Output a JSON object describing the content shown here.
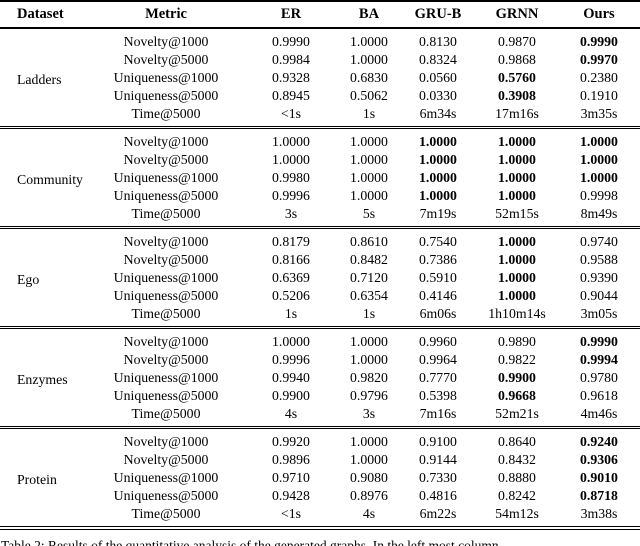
{
  "table": {
    "columns": [
      "Dataset",
      "Metric",
      "ER",
      "BA",
      "GRU-B",
      "GRNN",
      "Ours"
    ],
    "groups": [
      {
        "dataset": "Ladders",
        "rows": [
          {
            "metric": "Novelty@1000",
            "values": [
              "0.9990",
              "1.0000",
              "0.8130",
              "0.9870",
              "0.9990"
            ],
            "bold": [
              false,
              false,
              false,
              false,
              true
            ]
          },
          {
            "metric": "Novelty@5000",
            "values": [
              "0.9984",
              "1.0000",
              "0.8324",
              "0.9868",
              "0.9970"
            ],
            "bold": [
              false,
              false,
              false,
              false,
              true
            ]
          },
          {
            "metric": "Uniqueness@1000",
            "values": [
              "0.9328",
              "0.6830",
              "0.0560",
              "0.5760",
              "0.2380"
            ],
            "bold": [
              false,
              false,
              false,
              true,
              false
            ]
          },
          {
            "metric": "Uniqueness@5000",
            "values": [
              "0.8945",
              "0.5062",
              "0.0330",
              "0.3908",
              "0.1910"
            ],
            "bold": [
              false,
              false,
              false,
              true,
              false
            ]
          },
          {
            "metric": "Time@5000",
            "values": [
              "<1s",
              "1s",
              "6m34s",
              "17m16s",
              "3m35s"
            ],
            "bold": [
              false,
              false,
              false,
              false,
              false
            ]
          }
        ]
      },
      {
        "dataset": "Community",
        "rows": [
          {
            "metric": "Novelty@1000",
            "values": [
              "1.0000",
              "1.0000",
              "1.0000",
              "1.0000",
              "1.0000"
            ],
            "bold": [
              false,
              false,
              true,
              true,
              true
            ]
          },
          {
            "metric": "Novelty@5000",
            "values": [
              "1.0000",
              "1.0000",
              "1.0000",
              "1.0000",
              "1.0000"
            ],
            "bold": [
              false,
              false,
              true,
              true,
              true
            ]
          },
          {
            "metric": "Uniqueness@1000",
            "values": [
              "0.9980",
              "1.0000",
              "1.0000",
              "1.0000",
              "1.0000"
            ],
            "bold": [
              false,
              false,
              true,
              true,
              true
            ]
          },
          {
            "metric": "Uniqueness@5000",
            "values": [
              "0.9996",
              "1.0000",
              "1.0000",
              "1.0000",
              "0.9998"
            ],
            "bold": [
              false,
              false,
              true,
              true,
              false
            ]
          },
          {
            "metric": "Time@5000",
            "values": [
              "3s",
              "5s",
              "7m19s",
              "52m15s",
              "8m49s"
            ],
            "bold": [
              false,
              false,
              false,
              false,
              false
            ]
          }
        ]
      },
      {
        "dataset": "Ego",
        "rows": [
          {
            "metric": "Novelty@1000",
            "values": [
              "0.8179",
              "0.8610",
              "0.7540",
              "1.0000",
              "0.9740"
            ],
            "bold": [
              false,
              false,
              false,
              true,
              false
            ]
          },
          {
            "metric": "Novelty@5000",
            "values": [
              "0.8166",
              "0.8482",
              "0.7386",
              "1.0000",
              "0.9588"
            ],
            "bold": [
              false,
              false,
              false,
              true,
              false
            ]
          },
          {
            "metric": "Uniqueness@1000",
            "values": [
              "0.6369",
              "0.7120",
              "0.5910",
              "1.0000",
              "0.9390"
            ],
            "bold": [
              false,
              false,
              false,
              true,
              false
            ]
          },
          {
            "metric": "Uniqueness@5000",
            "values": [
              "0.5206",
              "0.6354",
              "0.4146",
              "1.0000",
              "0.9044"
            ],
            "bold": [
              false,
              false,
              false,
              true,
              false
            ]
          },
          {
            "metric": "Time@5000",
            "values": [
              "1s",
              "1s",
              "6m06s",
              "1h10m14s",
              "3m05s"
            ],
            "bold": [
              false,
              false,
              false,
              false,
              false
            ]
          }
        ]
      },
      {
        "dataset": "Enzymes",
        "rows": [
          {
            "metric": "Novelty@1000",
            "values": [
              "1.0000",
              "1.0000",
              "0.9960",
              "0.9890",
              "0.9990"
            ],
            "bold": [
              false,
              false,
              false,
              false,
              true
            ]
          },
          {
            "metric": "Novelty@5000",
            "values": [
              "0.9996",
              "1.0000",
              "0.9964",
              "0.9822",
              "0.9994"
            ],
            "bold": [
              false,
              false,
              false,
              false,
              true
            ]
          },
          {
            "metric": "Uniqueness@1000",
            "values": [
              "0.9940",
              "0.9820",
              "0.7770",
              "0.9900",
              "0.9780"
            ],
            "bold": [
              false,
              false,
              false,
              true,
              false
            ]
          },
          {
            "metric": "Uniqueness@5000",
            "values": [
              "0.9900",
              "0.9796",
              "0.5398",
              "0.9668",
              "0.9618"
            ],
            "bold": [
              false,
              false,
              false,
              true,
              false
            ]
          },
          {
            "metric": "Time@5000",
            "values": [
              "4s",
              "3s",
              "7m16s",
              "52m21s",
              "4m46s"
            ],
            "bold": [
              false,
              false,
              false,
              false,
              false
            ]
          }
        ]
      },
      {
        "dataset": "Protein",
        "rows": [
          {
            "metric": "Novelty@1000",
            "values": [
              "0.9920",
              "1.0000",
              "0.9100",
              "0.8640",
              "0.9240"
            ],
            "bold": [
              false,
              false,
              false,
              false,
              true
            ]
          },
          {
            "metric": "Novelty@5000",
            "values": [
              "0.9896",
              "1.0000",
              "0.9144",
              "0.8432",
              "0.9306"
            ],
            "bold": [
              false,
              false,
              false,
              false,
              true
            ]
          },
          {
            "metric": "Uniqueness@1000",
            "values": [
              "0.9710",
              "0.9080",
              "0.7330",
              "0.8880",
              "0.9010"
            ],
            "bold": [
              false,
              false,
              false,
              false,
              true
            ]
          },
          {
            "metric": "Uniqueness@5000",
            "values": [
              "0.9428",
              "0.8976",
              "0.4816",
              "0.8242",
              "0.8718"
            ],
            "bold": [
              false,
              false,
              false,
              false,
              true
            ]
          },
          {
            "metric": "Time@5000",
            "values": [
              "<1s",
              "4s",
              "6m22s",
              "54m12s",
              "3m38s"
            ],
            "bold": [
              false,
              false,
              false,
              false,
              false
            ]
          }
        ]
      }
    ]
  },
  "caption": "Table 2: Results of the quantitative analysis of the generated graphs. In the left most column"
}
